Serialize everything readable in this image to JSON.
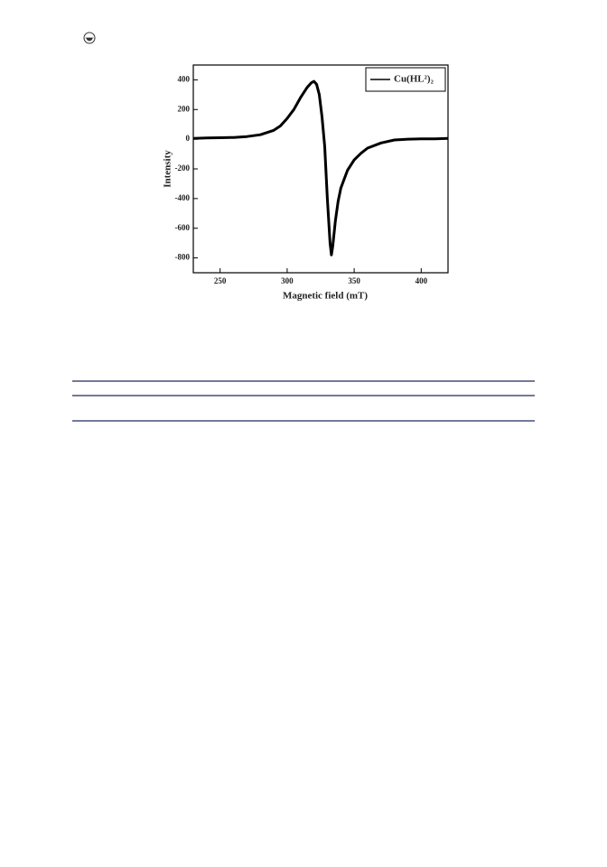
{
  "chart_data": {
    "type": "line",
    "x_label": "Magnetic field (mT)",
    "y_label": "Intensity",
    "x": [
      230,
      240,
      250,
      260,
      270,
      280,
      290,
      295,
      300,
      305,
      310,
      315,
      318,
      320,
      322,
      324,
      326,
      328,
      330,
      332,
      333,
      334,
      336,
      338,
      340,
      345,
      350,
      355,
      360,
      370,
      380,
      390,
      400,
      410,
      420
    ],
    "series": [
      {
        "name": "Cu(HL²)₂",
        "color": "#000000",
        "values": [
          5,
          8,
          10,
          12,
          18,
          30,
          60,
          90,
          140,
          200,
          280,
          350,
          380,
          390,
          370,
          300,
          150,
          -50,
          -400,
          -700,
          -780,
          -720,
          -550,
          -420,
          -330,
          -210,
          -140,
          -95,
          -60,
          -25,
          -5,
          0,
          2,
          3,
          5
        ]
      }
    ],
    "xlim": [
      230,
      420
    ],
    "xticks": [
      250,
      300,
      350,
      400
    ],
    "ylim": [
      -900,
      500
    ],
    "yticks": [
      -800,
      -600,
      -400,
      -200,
      0,
      200,
      400
    ],
    "grid": false,
    "legend": "top-right"
  }
}
